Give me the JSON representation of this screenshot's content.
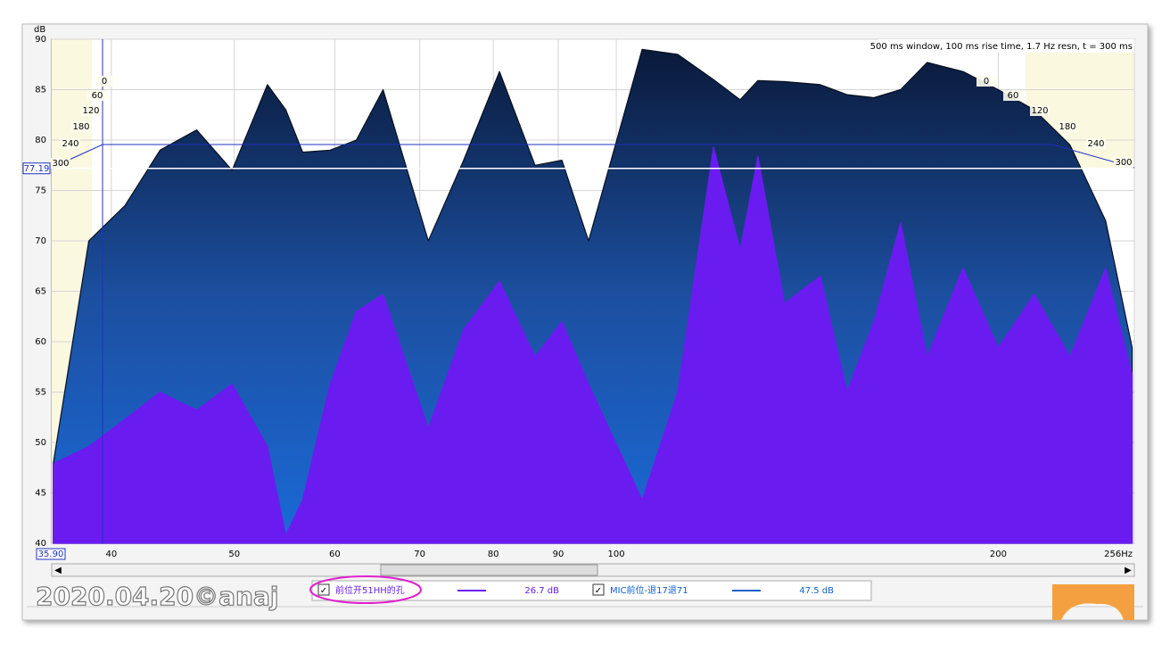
{
  "window": {
    "info": "500 ms window, 100 ms rise time,  1.7 Hz resn, t = 300 ms",
    "watermark": "2020.04.20©anaj"
  },
  "chart_data": {
    "type": "waterfall",
    "y_unit": "dB",
    "x": [
      36,
      38.4,
      41,
      43.7,
      46.7,
      49.8,
      53.1,
      54.9,
      56.6,
      59.5,
      62.4,
      65.5,
      71.1,
      75.8,
      80.9,
      86.3,
      90.6,
      95.1,
      104.8,
      111.8,
      119.3,
      125.2,
      129.3,
      135.7,
      144.8,
      152,
      159.6,
      167.5,
      175.8,
      187.6,
      200,
      213.5,
      227.8,
      243,
      255
    ],
    "series": [
      {
        "name": "前位开51HH的孔",
        "color": "#6a1cf0",
        "legend_value": "26.7 dB",
        "values": [
          47.9,
          49.6,
          52.3,
          55,
          53.2,
          55.8,
          49.6,
          40.8,
          44.3,
          55.8,
          63,
          64.7,
          51.4,
          61.2,
          66,
          58.5,
          62,
          55.8,
          44.3,
          55,
          79.3,
          69.1,
          78.4,
          63.8,
          66.5,
          55,
          62,
          71.8,
          58.5,
          67.3,
          59.4,
          64.7,
          58.5,
          67.3,
          56.7
        ]
      },
      {
        "name": "MIC前位-退17退71",
        "color": "#1060c8",
        "legend_value": "47.5 dB",
        "values": [
          47.9,
          70,
          73.5,
          79,
          81,
          77,
          85.5,
          83,
          78.8,
          79,
          80,
          85,
          70,
          78,
          86.8,
          77.5,
          78,
          70,
          89,
          88.5,
          86,
          84,
          85.9,
          85.8,
          85.5,
          84.5,
          84.2,
          85,
          87.7,
          86.8,
          85,
          83,
          79.5,
          72,
          59.4
        ]
      }
    ],
    "xlim": [
      35.9,
      256
    ],
    "ylim": [
      40,
      90
    ],
    "yticks": [
      40,
      45,
      50,
      55,
      60,
      65,
      70,
      75,
      80,
      85,
      90
    ],
    "xticks": [
      40,
      50,
      60,
      70,
      80,
      90,
      100,
      200,
      {
        "value": 256,
        "label": "256Hz"
      }
    ],
    "log_x": true,
    "grid": true,
    "y_cursor": 77.19,
    "x_cursor": "35.90",
    "slice_times": [
      0,
      60,
      120,
      180,
      240,
      300
    ]
  }
}
